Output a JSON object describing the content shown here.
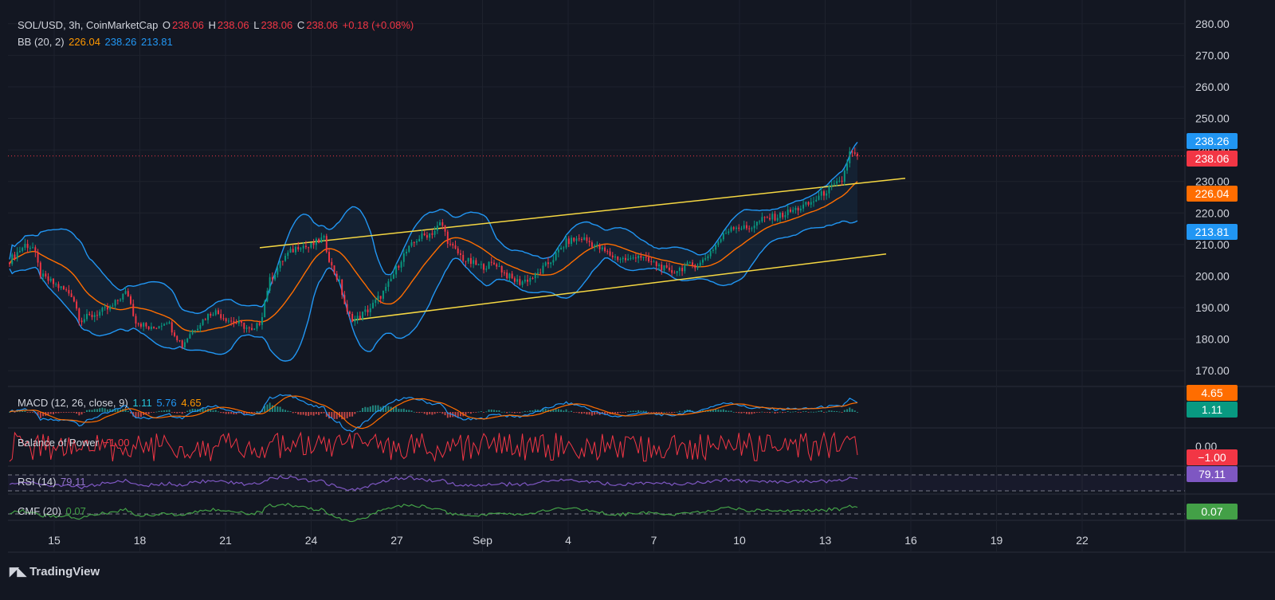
{
  "header": {
    "symbol": "SOL/USD, 3h, CoinMarketCap",
    "open_label": "O",
    "open": "238.06",
    "high_label": "H",
    "high": "238.06",
    "low_label": "L",
    "low": "238.06",
    "close_label": "C",
    "close": "238.06",
    "change": "+0.18 (+0.08%)"
  },
  "bb": {
    "label": "BB (20, 2)",
    "basis": "226.04",
    "upper": "238.26",
    "lower": "213.81"
  },
  "macd": {
    "label": "MACD (12, 26, close, 9)",
    "hist": "1.11",
    "macd": "5.76",
    "signal": "4.65"
  },
  "bop": {
    "label": "Balance of Power",
    "value": "−1.00"
  },
  "rsi": {
    "label": "RSI (14)",
    "value": "79.11"
  },
  "cmf": {
    "label": "CMF (20)",
    "value": "0.07"
  },
  "branding": "TradingView",
  "chart_data": {
    "type": "candlestick",
    "price_axis": {
      "ticks": [
        "280.00",
        "270.00",
        "260.00",
        "250.00",
        "240.00",
        "230.00",
        "220.00",
        "210.00",
        "200.00",
        "190.00",
        "180.00",
        "170.00"
      ],
      "range": [
        165,
        285
      ]
    },
    "x_ticks": [
      "15",
      "18",
      "21",
      "24",
      "27",
      "Sep",
      "4",
      "7",
      "10",
      "13",
      "16",
      "19",
      "22"
    ],
    "price_badges": [
      {
        "value": "238.26",
        "color": "#2196f3",
        "price": 238.26
      },
      {
        "value": "238.06",
        "color": "#f23645",
        "price": 238.06
      },
      {
        "value": "226.04",
        "color": "#ff6d00",
        "price": 226.04
      },
      {
        "value": "213.81",
        "color": "#2196f3",
        "price": 213.81
      }
    ],
    "macd_badges": [
      {
        "value": "4.65",
        "color": "#ff6d00"
      },
      {
        "value": "1.11",
        "color": "#089981"
      }
    ],
    "bop_axis": {
      "tick": "0.00",
      "badge": "−1.00",
      "badge_color": "#f23645"
    },
    "rsi_badge": {
      "value": "79.11",
      "color": "#7e57c2"
    },
    "cmf_badge": {
      "value": "0.07",
      "color": "#43a047"
    },
    "price_path": [
      [
        0,
        205
      ],
      [
        2,
        210
      ],
      [
        3,
        209
      ],
      [
        4,
        200
      ],
      [
        6,
        197
      ],
      [
        8,
        194
      ],
      [
        9,
        186
      ],
      [
        11,
        188
      ],
      [
        13,
        190
      ],
      [
        14,
        193
      ],
      [
        15,
        195
      ],
      [
        16,
        186
      ],
      [
        18,
        183
      ],
      [
        20,
        186
      ],
      [
        21,
        182
      ],
      [
        22,
        178
      ],
      [
        23,
        182
      ],
      [
        25,
        187
      ],
      [
        26,
        189
      ],
      [
        28,
        186
      ],
      [
        30,
        184
      ],
      [
        31,
        182
      ],
      [
        32,
        186
      ],
      [
        33,
        198
      ],
      [
        35,
        206
      ],
      [
        37,
        210
      ],
      [
        38,
        209
      ],
      [
        40,
        212
      ],
      [
        41,
        203
      ],
      [
        42,
        198
      ],
      [
        43,
        188
      ],
      [
        44,
        186
      ],
      [
        46,
        190
      ],
      [
        48,
        196
      ],
      [
        50,
        206
      ],
      [
        52,
        212
      ],
      [
        54,
        214
      ],
      [
        55,
        217
      ],
      [
        56,
        210
      ],
      [
        58,
        205
      ],
      [
        60,
        203
      ],
      [
        62,
        204
      ],
      [
        63,
        201
      ],
      [
        64,
        199
      ],
      [
        65,
        198
      ],
      [
        67,
        200
      ],
      [
        69,
        205
      ],
      [
        71,
        211
      ],
      [
        73,
        212
      ],
      [
        75,
        209
      ],
      [
        77,
        206
      ],
      [
        79,
        205
      ],
      [
        80,
        207
      ],
      [
        81,
        205
      ],
      [
        83,
        203
      ],
      [
        84,
        201
      ],
      [
        86,
        203
      ],
      [
        88,
        204
      ],
      [
        90,
        210
      ],
      [
        92,
        216
      ],
      [
        94,
        215
      ],
      [
        96,
        218
      ],
      [
        98,
        219
      ],
      [
        100,
        221
      ],
      [
        102,
        223
      ],
      [
        104,
        227
      ],
      [
        106,
        230
      ],
      [
        107,
        239
      ],
      [
        108,
        238.06
      ]
    ],
    "channel": {
      "upper": [
        [
          25,
          209
        ],
        [
          120,
          231
        ]
      ],
      "lower": [
        [
          31,
          186
        ],
        [
          118,
          207
        ]
      ]
    },
    "x_ranges": {
      "days_per_tick": 3,
      "first_tick_index": 0
    }
  }
}
